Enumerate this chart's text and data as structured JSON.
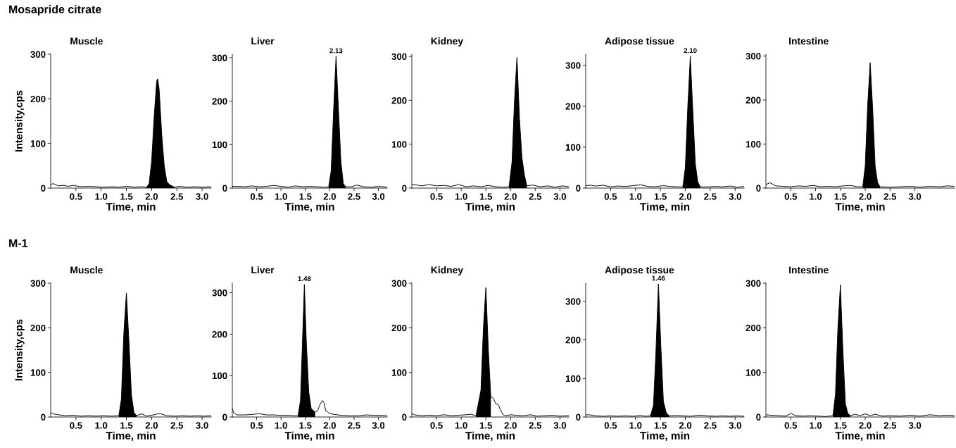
{
  "chart_data": [
    {
      "type": "line",
      "title": "Muscle",
      "annotations": [
        "Mosapride citrate"
      ],
      "xlabel": "Time, min",
      "ylabel": "Intensity,cps",
      "xlim": [
        0,
        3.18
      ],
      "ylim": [
        0,
        300
      ],
      "xticks": [
        0.5,
        {
          "value": 1,
          "label": "1.0"
        },
        1.5,
        {
          "value": 2,
          "label": "2.0"
        },
        2.5,
        {
          "value": 3,
          "label": "3.0"
        }
      ],
      "yticks": [
        0,
        100,
        200,
        300
      ],
      "marker": "none",
      "line_style": "solid",
      "series": [
        {
          "type": "line",
          "color": "#000000",
          "x": [
            0,
            0.05,
            0.15,
            0.25,
            0.35,
            0.45,
            0.6,
            0.75,
            0.9,
            1.05,
            1.2,
            1.35,
            1.5,
            1.65,
            1.8,
            1.9,
            1.95,
            2.0,
            2.05,
            2.1,
            2.12,
            2.15,
            2.2,
            2.25,
            2.3,
            2.35,
            2.4,
            2.45,
            2.55,
            2.7,
            2.85,
            3.0,
            3.18
          ],
          "values": [
            8,
            10,
            5,
            6,
            4,
            6,
            3,
            4,
            3,
            2,
            3,
            2,
            4,
            2,
            3,
            2,
            10,
            60,
            160,
            240,
            245,
            220,
            120,
            50,
            15,
            8,
            5,
            2,
            4,
            2,
            3,
            2,
            3
          ]
        },
        {
          "type": "area",
          "color": "#000000",
          "x": [
            1.9,
            1.95,
            2.0,
            2.05,
            2.1,
            2.12,
            2.15,
            2.2,
            2.25,
            2.3,
            2.35,
            2.4,
            2.45
          ],
          "values": [
            2,
            10,
            60,
            160,
            240,
            245,
            220,
            120,
            50,
            15,
            8,
            5,
            2
          ]
        }
      ]
    },
    {
      "type": "line",
      "title": "Liver",
      "annotations": [
        {
          "text": "2.13",
          "x": 2.13,
          "y": 303
        }
      ],
      "xlabel": "Time, min",
      "xlim": [
        0,
        3.18
      ],
      "ylim": [
        0,
        308
      ],
      "xticks": [
        0.5,
        {
          "value": 1,
          "label": "1.0"
        },
        1.5,
        {
          "value": 2,
          "label": "2.0"
        },
        2.5,
        {
          "value": 3,
          "label": "3.0"
        }
      ],
      "yticks": [
        0,
        100,
        200,
        300
      ],
      "marker": "none",
      "line_style": "solid",
      "series": [
        {
          "type": "line",
          "color": "#000000",
          "x": [
            0,
            0.1,
            0.25,
            0.4,
            0.55,
            0.7,
            0.85,
            1.0,
            1.15,
            1.3,
            1.45,
            1.6,
            1.75,
            1.9,
            1.98,
            2.03,
            2.08,
            2.13,
            2.18,
            2.23,
            2.28,
            2.33,
            2.45,
            2.55,
            2.7,
            2.85,
            3.0,
            3.18
          ],
          "values": [
            4,
            4,
            3,
            5,
            3,
            4,
            6,
            4,
            2,
            5,
            3,
            4,
            3,
            2,
            3,
            40,
            180,
            303,
            180,
            60,
            10,
            3,
            3,
            7,
            3,
            2,
            4,
            2
          ]
        },
        {
          "type": "area",
          "color": "#000000",
          "x": [
            1.98,
            2.03,
            2.08,
            2.13,
            2.18,
            2.23,
            2.28,
            2.33
          ],
          "values": [
            3,
            40,
            180,
            303,
            180,
            60,
            10,
            3
          ]
        }
      ]
    },
    {
      "type": "line",
      "title": "Kidney",
      "xlabel": "Time, min",
      "xlim": [
        0,
        3.18
      ],
      "ylim": [
        0,
        305
      ],
      "xticks": [
        0.5,
        {
          "value": 1,
          "label": "1.0"
        },
        1.5,
        {
          "value": 2,
          "label": "2.0"
        },
        2.5,
        {
          "value": 3,
          "label": "3.0"
        }
      ],
      "yticks": [
        0,
        100,
        200,
        300
      ],
      "marker": "none",
      "line_style": "solid",
      "series": [
        {
          "type": "line",
          "color": "#000000",
          "x": [
            0,
            0.1,
            0.2,
            0.35,
            0.5,
            0.65,
            0.8,
            0.95,
            1.1,
            1.25,
            1.4,
            1.55,
            1.7,
            1.85,
            1.97,
            2.03,
            2.08,
            2.13,
            2.18,
            2.23,
            2.28,
            2.33,
            2.45,
            2.6,
            2.75,
            2.9,
            3.05,
            3.18
          ],
          "values": [
            8,
            7,
            5,
            8,
            5,
            6,
            4,
            8,
            3,
            5,
            3,
            6,
            3,
            2,
            3,
            60,
            200,
            298,
            160,
            70,
            30,
            5,
            7,
            3,
            5,
            2,
            5,
            3
          ]
        },
        {
          "type": "area",
          "color": "#000000",
          "x": [
            1.97,
            2.03,
            2.08,
            2.13,
            2.18,
            2.23,
            2.28,
            2.33
          ],
          "values": [
            3,
            60,
            200,
            298,
            160,
            70,
            30,
            5
          ]
        }
      ]
    },
    {
      "type": "line",
      "title": "Adipose tissue",
      "annotations": [
        {
          "text": "2.10",
          "x": 2.1,
          "y": 322
        }
      ],
      "xlabel": "Time, min",
      "xlim": [
        0,
        3.18
      ],
      "ylim": [
        0,
        327
      ],
      "xticks": [
        0.5,
        {
          "value": 1,
          "label": "1.0"
        },
        1.5,
        {
          "value": 2,
          "label": "2.0"
        },
        2.5,
        {
          "value": 3,
          "label": "3.0"
        }
      ],
      "yticks": [
        0,
        100,
        200,
        300
      ],
      "marker": "none",
      "line_style": "solid",
      "series": [
        {
          "type": "line",
          "color": "#000000",
          "x": [
            0,
            0.1,
            0.2,
            0.35,
            0.5,
            0.65,
            0.8,
            0.95,
            1.1,
            1.25,
            1.4,
            1.55,
            1.7,
            1.85,
            1.95,
            2.0,
            2.05,
            2.1,
            2.15,
            2.2,
            2.25,
            2.3,
            2.45,
            2.6,
            2.75,
            2.9,
            3.05,
            3.18
          ],
          "values": [
            6,
            7,
            5,
            7,
            3,
            5,
            4,
            6,
            8,
            4,
            3,
            6,
            4,
            3,
            3,
            50,
            200,
            322,
            190,
            60,
            15,
            3,
            3,
            4,
            3,
            5,
            2,
            4
          ]
        },
        {
          "type": "area",
          "color": "#000000",
          "x": [
            1.95,
            2.0,
            2.05,
            2.1,
            2.15,
            2.2,
            2.25,
            2.3
          ],
          "values": [
            3,
            50,
            200,
            322,
            190,
            60,
            15,
            3
          ]
        }
      ]
    },
    {
      "type": "line",
      "title": "Intestine",
      "xlabel": "Time, min",
      "xlim": [
        0,
        3.8
      ],
      "ylim": [
        0,
        304
      ],
      "xticks": [
        0.5,
        {
          "value": 1,
          "label": "1.0"
        },
        1.5,
        {
          "value": 2,
          "label": "2.0"
        },
        2.5,
        {
          "value": 3,
          "label": "3.0"
        }
      ],
      "yticks": [
        0,
        100,
        200,
        300
      ],
      "marker": "none",
      "line_style": "solid",
      "series": [
        {
          "type": "line",
          "color": "#000000",
          "x": [
            0,
            0.08,
            0.2,
            0.35,
            0.5,
            0.65,
            0.8,
            0.95,
            1.1,
            1.25,
            1.4,
            1.55,
            1.7,
            1.85,
            1.95,
            2.0,
            2.05,
            2.1,
            2.15,
            2.2,
            2.25,
            2.3,
            2.5,
            2.7,
            2.9,
            3.1,
            3.3,
            3.5,
            3.65,
            3.8
          ],
          "values": [
            8,
            12,
            5,
            4,
            3,
            5,
            4,
            6,
            3,
            4,
            3,
            5,
            6,
            3,
            3,
            50,
            190,
            285,
            180,
            50,
            12,
            3,
            2,
            3,
            4,
            2,
            4,
            3,
            5,
            4
          ]
        },
        {
          "type": "area",
          "color": "#000000",
          "x": [
            1.95,
            2.0,
            2.05,
            2.1,
            2.15,
            2.2,
            2.25,
            2.3
          ],
          "values": [
            3,
            50,
            190,
            285,
            180,
            50,
            12,
            3
          ]
        }
      ]
    },
    {
      "type": "line",
      "title": "Muscle",
      "annotations": [
        "M-1"
      ],
      "xlabel": "Time, min",
      "ylabel": "Intensity,cps",
      "xlim": [
        0,
        3.18
      ],
      "ylim": [
        0,
        300
      ],
      "xticks": [
        0.5,
        {
          "value": 1,
          "label": "1.0"
        },
        1.5,
        {
          "value": 2,
          "label": "2.0"
        },
        2.5,
        {
          "value": 3,
          "label": "3.0"
        }
      ],
      "yticks": [
        0,
        100,
        200,
        300
      ],
      "marker": "none",
      "line_style": "solid",
      "series": [
        {
          "type": "line",
          "color": "#000000",
          "x": [
            0,
            0.05,
            0.15,
            0.3,
            0.45,
            0.6,
            0.75,
            0.9,
            1.05,
            1.2,
            1.35,
            1.4,
            1.45,
            1.5,
            1.55,
            1.6,
            1.65,
            1.7,
            1.8,
            1.9,
            2.05,
            2.15,
            2.3,
            2.45,
            2.6,
            2.75,
            2.9,
            3.05,
            3.18
          ],
          "values": [
            10,
            7,
            5,
            3,
            4,
            2,
            3,
            2,
            3,
            2,
            3,
            40,
            190,
            278,
            170,
            50,
            10,
            3,
            7,
            2,
            5,
            8,
            3,
            2,
            3,
            2,
            3,
            2,
            3
          ]
        },
        {
          "type": "area",
          "color": "#000000",
          "x": [
            1.35,
            1.4,
            1.45,
            1.5,
            1.55,
            1.6,
            1.65,
            1.7
          ],
          "values": [
            3,
            40,
            190,
            278,
            170,
            50,
            10,
            3
          ]
        }
      ]
    },
    {
      "type": "line",
      "title": "Liver",
      "annotations": [
        {
          "text": "1.48",
          "x": 1.48,
          "y": 320
        }
      ],
      "xlabel": "Time, min",
      "xlim": [
        0,
        3.18
      ],
      "ylim": [
        0,
        323
      ],
      "xticks": [
        0.5,
        {
          "value": 1,
          "label": "1.0"
        },
        1.5,
        {
          "value": 2,
          "label": "2.0"
        },
        2.5,
        {
          "value": 3,
          "label": "3.0"
        }
      ],
      "yticks": [
        0,
        100,
        200,
        300
      ],
      "marker": "none",
      "line_style": "solid",
      "series": [
        {
          "type": "line",
          "color": "#000000",
          "x": [
            0,
            0.03,
            0.1,
            0.25,
            0.4,
            0.55,
            0.7,
            0.85,
            1.0,
            1.15,
            1.3,
            1.35,
            1.4,
            1.44,
            1.48,
            1.52,
            1.57,
            1.62,
            1.7,
            1.75,
            1.8,
            1.85,
            1.88,
            1.92,
            1.96,
            2.0,
            2.1,
            2.25,
            2.4,
            2.6,
            2.75,
            2.9,
            3.05,
            3.18
          ],
          "values": [
            20,
            10,
            5,
            5,
            6,
            8,
            5,
            5,
            4,
            4,
            3,
            3,
            40,
            180,
            320,
            180,
            60,
            20,
            12,
            15,
            30,
            40,
            35,
            15,
            12,
            8,
            6,
            4,
            3,
            3,
            5,
            4,
            4,
            3
          ]
        },
        {
          "type": "area",
          "color": "#000000",
          "x": [
            1.35,
            1.4,
            1.44,
            1.48,
            1.52,
            1.57,
            1.62,
            1.7
          ],
          "values": [
            3,
            40,
            180,
            320,
            180,
            60,
            20,
            12
          ]
        }
      ]
    },
    {
      "type": "line",
      "title": "Kidney",
      "xlabel": "Time, min",
      "xlim": [
        0,
        3.18
      ],
      "ylim": [
        0,
        300
      ],
      "xticks": [
        0.5,
        {
          "value": 1,
          "label": "1.0"
        },
        1.5,
        {
          "value": 2,
          "label": "2.0"
        },
        2.5,
        {
          "value": 3,
          "label": "3.0"
        }
      ],
      "yticks": [
        0,
        100,
        200,
        300
      ],
      "marker": "none",
      "line_style": "solid",
      "series": [
        {
          "type": "line",
          "color": "#000000",
          "x": [
            0,
            0.05,
            0.2,
            0.35,
            0.5,
            0.65,
            0.8,
            0.95,
            1.1,
            1.2,
            1.3,
            1.4,
            1.45,
            1.5,
            1.55,
            1.6,
            1.65,
            1.7,
            1.75,
            1.8,
            1.85,
            1.9,
            2.0,
            2.1,
            2.25,
            2.4,
            2.55,
            2.7,
            2.85,
            3.0,
            3.18
          ],
          "values": [
            8,
            5,
            3,
            4,
            3,
            5,
            3,
            4,
            5,
            6,
            3,
            60,
            200,
            290,
            150,
            45,
            42,
            30,
            28,
            15,
            5,
            3,
            5,
            4,
            3,
            5,
            2,
            3,
            4,
            2,
            3
          ]
        },
        {
          "type": "area",
          "color": "#000000",
          "x": [
            1.3,
            1.4,
            1.45,
            1.5,
            1.55,
            1.6
          ],
          "values": [
            3,
            60,
            200,
            290,
            150,
            45
          ]
        }
      ]
    },
    {
      "type": "line",
      "title": "Adipose tissue",
      "annotations": [
        {
          "text": "1.46",
          "x": 1.46,
          "y": 345
        }
      ],
      "xlabel": "Time, min",
      "xlim": [
        0,
        3.18
      ],
      "ylim": [
        0,
        347
      ],
      "xticks": [
        0.5,
        {
          "value": 1,
          "label": "1.0"
        },
        1.5,
        {
          "value": 2,
          "label": "2.0"
        },
        2.5,
        {
          "value": 3,
          "label": "3.0"
        }
      ],
      "yticks": [
        0,
        100,
        200,
        300
      ],
      "marker": "none",
      "line_style": "solid",
      "series": [
        {
          "type": "line",
          "color": "#000000",
          "x": [
            0,
            0.05,
            0.2,
            0.35,
            0.5,
            0.65,
            0.8,
            0.95,
            1.1,
            1.2,
            1.3,
            1.36,
            1.41,
            1.46,
            1.51,
            1.56,
            1.62,
            1.68,
            1.8,
            1.95,
            2.1,
            2.3,
            2.45,
            2.6,
            2.75,
            2.9,
            3.05,
            3.18
          ],
          "values": [
            5,
            6,
            3,
            2,
            3,
            2,
            3,
            2,
            4,
            2,
            3,
            30,
            170,
            345,
            180,
            40,
            10,
            3,
            4,
            3,
            2,
            5,
            3,
            2,
            3,
            2,
            3,
            2
          ]
        },
        {
          "type": "area",
          "color": "#000000",
          "x": [
            1.3,
            1.36,
            1.41,
            1.46,
            1.51,
            1.56,
            1.62,
            1.68
          ],
          "values": [
            3,
            30,
            170,
            345,
            180,
            40,
            10,
            3
          ]
        }
      ]
    },
    {
      "type": "line",
      "title": "Intestine",
      "xlabel": "Time, min",
      "xlim": [
        0,
        3.8
      ],
      "ylim": [
        0,
        300
      ],
      "xticks": [
        0.5,
        {
          "value": 1,
          "label": "1.0"
        },
        1.5,
        {
          "value": 2,
          "label": "2.0"
        },
        2.5,
        {
          "value": 3,
          "label": "3.0"
        }
      ],
      "yticks": [
        0,
        100,
        200,
        300
      ],
      "marker": "none",
      "line_style": "solid",
      "series": [
        {
          "type": "line",
          "color": "#000000",
          "x": [
            0,
            0.1,
            0.25,
            0.4,
            0.5,
            0.6,
            0.75,
            0.9,
            1.05,
            1.2,
            1.35,
            1.4,
            1.45,
            1.5,
            1.55,
            1.6,
            1.65,
            1.7,
            1.8,
            1.9,
            2.0,
            2.1,
            2.2,
            2.35,
            2.5,
            2.7,
            2.9,
            3.1,
            3.3,
            3.5,
            3.65,
            3.8
          ],
          "values": [
            5,
            4,
            3,
            2,
            8,
            3,
            2,
            3,
            2,
            1,
            3,
            50,
            200,
            296,
            150,
            30,
            8,
            3,
            6,
            3,
            7,
            3,
            6,
            2,
            3,
            2,
            4,
            2,
            5,
            3,
            4,
            3
          ]
        },
        {
          "type": "area",
          "color": "#000000",
          "x": [
            1.35,
            1.4,
            1.45,
            1.5,
            1.55,
            1.6,
            1.65,
            1.7
          ],
          "values": [
            3,
            50,
            200,
            296,
            150,
            30,
            8,
            3
          ]
        }
      ]
    }
  ]
}
